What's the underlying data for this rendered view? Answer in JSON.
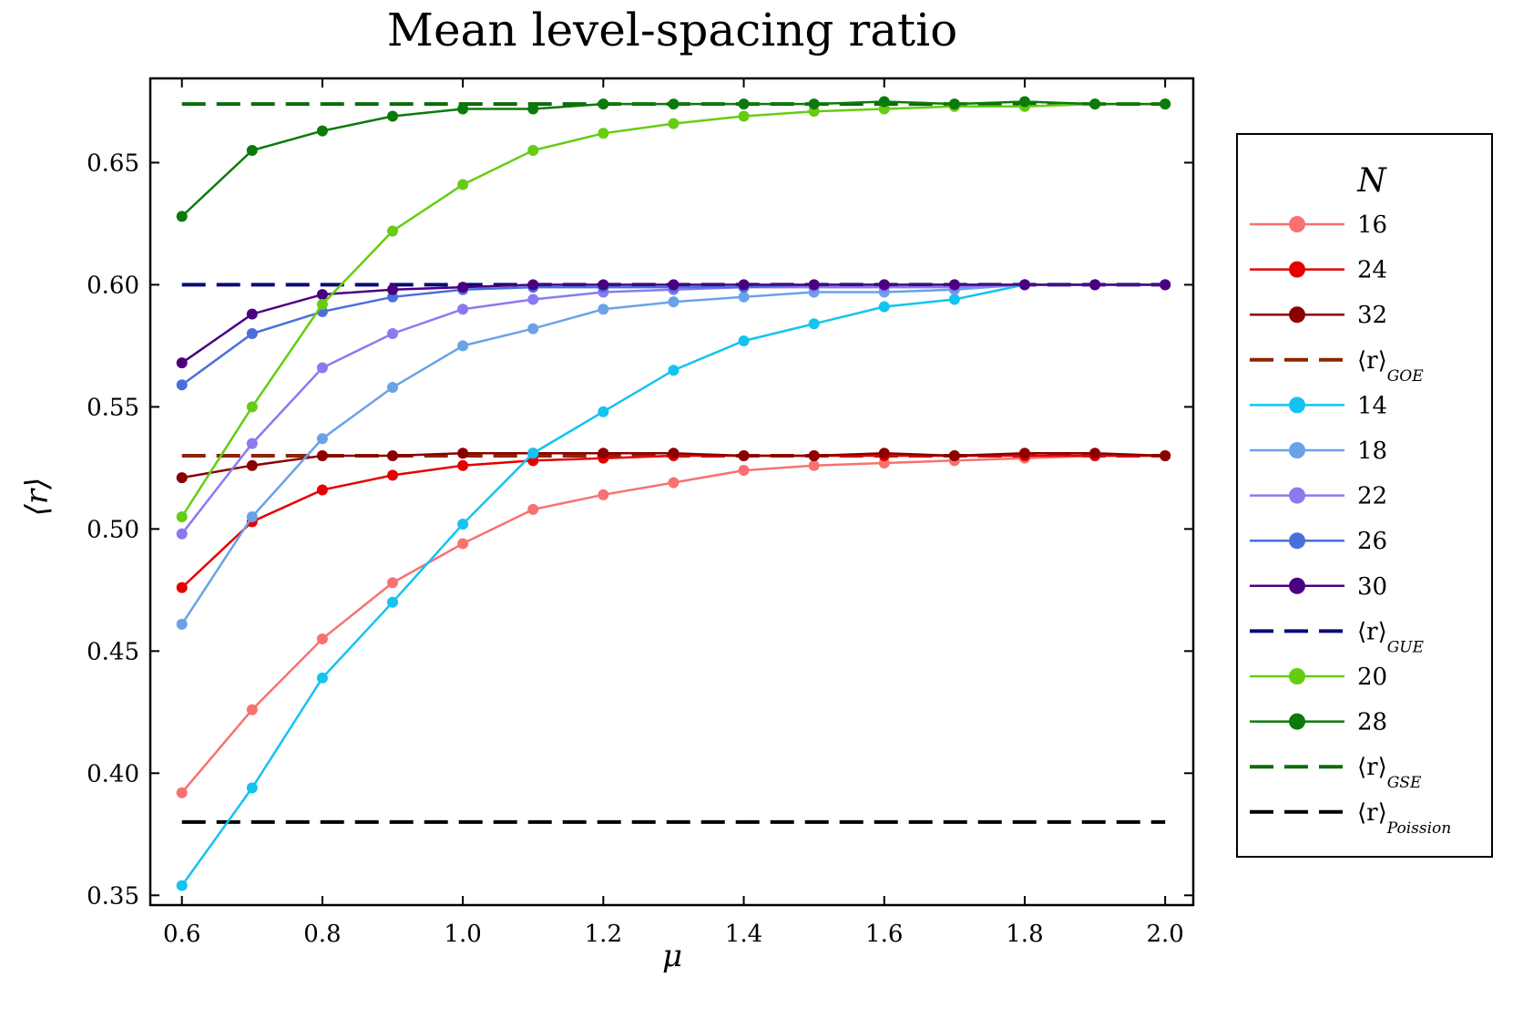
{
  "chart_data": {
    "type": "line",
    "title": "Mean level-spacing ratio",
    "xlabel": "μ",
    "ylabel": "⟨r⟩",
    "xlim": [
      0.555,
      2.04
    ],
    "ylim": [
      0.346,
      0.6845
    ],
    "xticks": [
      0.6,
      0.8,
      1.0,
      1.2,
      1.4,
      1.6,
      1.8,
      2.0
    ],
    "xtick_labels": [
      "0.6",
      "0.8",
      "1.0",
      "1.2",
      "1.4",
      "1.6",
      "1.8",
      "2.0"
    ],
    "yticks": [
      0.35,
      0.4,
      0.45,
      0.5,
      0.55,
      0.6,
      0.65
    ],
    "ytick_labels": [
      "0.35",
      "0.40",
      "0.45",
      "0.50",
      "0.55",
      "0.60",
      "0.65"
    ],
    "x": [
      0.6,
      0.7,
      0.8,
      0.9,
      1.0,
      1.1,
      1.2,
      1.3,
      1.4,
      1.5,
      1.6,
      1.7,
      1.8,
      1.9,
      2.0
    ],
    "legend_title": "N",
    "legend_position": "right",
    "series": [
      {
        "name": "16",
        "color": "#f87171",
        "style": "solid",
        "marker": true,
        "values": [
          0.392,
          0.426,
          0.455,
          0.478,
          0.494,
          0.508,
          0.514,
          0.519,
          0.524,
          0.526,
          0.527,
          0.528,
          0.529,
          0.53,
          0.53
        ]
      },
      {
        "name": "24",
        "color": "#e60000",
        "style": "solid",
        "marker": true,
        "values": [
          0.476,
          0.503,
          0.516,
          0.522,
          0.526,
          0.528,
          0.529,
          0.53,
          0.53,
          0.53,
          0.53,
          0.53,
          0.53,
          0.53,
          0.53
        ]
      },
      {
        "name": "32",
        "color": "#8b0000",
        "style": "solid",
        "marker": true,
        "values": [
          0.521,
          0.526,
          0.53,
          0.53,
          0.531,
          0.531,
          0.531,
          0.531,
          0.53,
          0.53,
          0.531,
          0.53,
          0.531,
          0.531,
          0.53
        ]
      },
      {
        "name": "⟨r⟩",
        "sub": "GOE",
        "color": "#8b2500",
        "style": "dashed",
        "marker": false,
        "values": [
          0.53,
          0.53,
          0.53,
          0.53,
          0.53,
          0.53,
          0.53,
          0.53,
          0.53,
          0.53,
          0.53,
          0.53,
          0.53,
          0.53,
          0.53
        ]
      },
      {
        "name": "14",
        "color": "#14c3f0",
        "style": "solid",
        "marker": true,
        "values": [
          0.354,
          0.394,
          0.439,
          0.47,
          0.502,
          0.531,
          0.548,
          0.565,
          0.577,
          0.584,
          0.591,
          0.594,
          0.6,
          0.6,
          0.6
        ]
      },
      {
        "name": "18",
        "color": "#6aa2e8",
        "style": "solid",
        "marker": true,
        "values": [
          0.461,
          0.505,
          0.537,
          0.558,
          0.575,
          0.582,
          0.59,
          0.593,
          0.595,
          0.597,
          0.597,
          0.598,
          0.6,
          0.6,
          0.6
        ]
      },
      {
        "name": "22",
        "color": "#8a7af0",
        "style": "solid",
        "marker": true,
        "values": [
          0.498,
          0.535,
          0.566,
          0.58,
          0.59,
          0.594,
          0.597,
          0.598,
          0.599,
          0.599,
          0.599,
          0.599,
          0.6,
          0.6,
          0.6
        ]
      },
      {
        "name": "26",
        "color": "#4a6fdc",
        "style": "solid",
        "marker": true,
        "values": [
          0.559,
          0.58,
          0.589,
          0.595,
          0.598,
          0.599,
          0.599,
          0.599,
          0.599,
          0.6,
          0.6,
          0.6,
          0.6,
          0.6,
          0.6
        ]
      },
      {
        "name": "30",
        "color": "#4b0082",
        "style": "solid",
        "marker": true,
        "values": [
          0.568,
          0.588,
          0.596,
          0.598,
          0.599,
          0.6,
          0.6,
          0.6,
          0.6,
          0.6,
          0.6,
          0.6,
          0.6,
          0.6,
          0.6
        ]
      },
      {
        "name": "⟨r⟩",
        "sub": "GUE",
        "color": "#0a0a78",
        "style": "dashed",
        "marker": false,
        "values": [
          0.6,
          0.6,
          0.6,
          0.6,
          0.6,
          0.6,
          0.6,
          0.6,
          0.6,
          0.6,
          0.6,
          0.6,
          0.6,
          0.6,
          0.6
        ]
      },
      {
        "name": "20",
        "color": "#66cc11",
        "style": "solid",
        "marker": true,
        "values": [
          0.505,
          0.55,
          0.592,
          0.622,
          0.641,
          0.655,
          0.662,
          0.666,
          0.669,
          0.671,
          0.672,
          0.673,
          0.673,
          0.674,
          0.674
        ]
      },
      {
        "name": "28",
        "color": "#0b7a0b",
        "style": "solid",
        "marker": true,
        "values": [
          0.628,
          0.655,
          0.663,
          0.669,
          0.672,
          0.672,
          0.674,
          0.674,
          0.674,
          0.674,
          0.675,
          0.674,
          0.675,
          0.674,
          0.674
        ]
      },
      {
        "name": "⟨r⟩",
        "sub": "GSE",
        "color": "#0b6b0b",
        "style": "dashed",
        "marker": false,
        "values": [
          0.674,
          0.674,
          0.674,
          0.674,
          0.674,
          0.674,
          0.674,
          0.674,
          0.674,
          0.674,
          0.674,
          0.674,
          0.674,
          0.674,
          0.674
        ]
      },
      {
        "name": "⟨r⟩",
        "sub": "Poission",
        "color": "#000000",
        "style": "dashed",
        "marker": false,
        "values": [
          0.38,
          0.38,
          0.38,
          0.38,
          0.38,
          0.38,
          0.38,
          0.38,
          0.38,
          0.38,
          0.38,
          0.38,
          0.38,
          0.38,
          0.38
        ]
      }
    ]
  }
}
